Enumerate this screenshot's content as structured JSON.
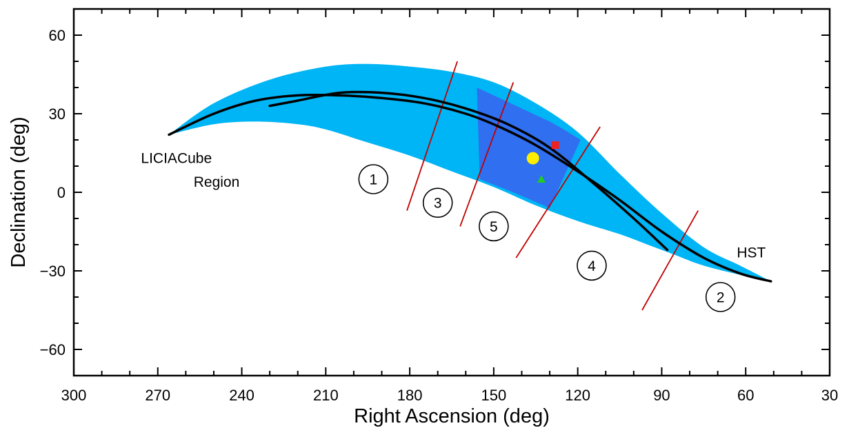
{
  "chart_data": {
    "type": "scatter",
    "xlabel": "Right Ascension (deg)",
    "ylabel": "Declination (deg)",
    "xlim": [
      300,
      30
    ],
    "ylim": [
      -70,
      70
    ],
    "x_ticks": [
      300,
      270,
      240,
      210,
      180,
      150,
      120,
      90,
      60,
      30
    ],
    "y_ticks": [
      60,
      30,
      0,
      -30,
      -60
    ],
    "x_tick_labels": [
      "300",
      "270",
      "240",
      "210",
      "180",
      "150",
      "120",
      "90",
      "60",
      "30"
    ],
    "y_tick_labels": [
      "60",
      "30",
      "0",
      "−30",
      "−60"
    ],
    "grid": false,
    "colors": {
      "band": "#00b5f5",
      "band_highlight": "#2f6ff0",
      "track": "#000000",
      "boundary": "#c00000",
      "circle_marker": "#ffee00",
      "square_marker": "#ee2222",
      "triangle_marker": "#22cc22"
    },
    "band_upper": [
      [
        266,
        22
      ],
      [
        250,
        34
      ],
      [
        230,
        43
      ],
      [
        210,
        48
      ],
      [
        195,
        49
      ],
      [
        180,
        48
      ],
      [
        165,
        46
      ],
      [
        150,
        42
      ],
      [
        135,
        34
      ],
      [
        120,
        23
      ],
      [
        105,
        7
      ],
      [
        90,
        -8
      ],
      [
        75,
        -21
      ],
      [
        62,
        -28
      ],
      [
        51,
        -34
      ]
    ],
    "band_lower": [
      [
        266,
        22
      ],
      [
        250,
        26
      ],
      [
        235,
        27
      ],
      [
        220,
        26
      ],
      [
        210,
        24
      ],
      [
        195,
        19
      ],
      [
        180,
        14
      ],
      [
        165,
        8
      ],
      [
        150,
        2
      ],
      [
        135,
        -5
      ],
      [
        120,
        -11
      ],
      [
        105,
        -16
      ],
      [
        95,
        -20
      ],
      [
        85,
        -24
      ],
      [
        75,
        -28
      ],
      [
        60,
        -32
      ],
      [
        51,
        -34
      ]
    ],
    "highlight_region": [
      [
        156,
        40
      ],
      [
        130,
        27
      ],
      [
        125,
        24
      ],
      [
        119,
        20
      ],
      [
        130,
        -6
      ],
      [
        143,
        0
      ],
      [
        155,
        5
      ]
    ],
    "tracks": [
      {
        "points": [
          [
            266,
            22
          ],
          [
            250,
            30
          ],
          [
            235,
            35
          ],
          [
            220,
            37
          ],
          [
            205,
            37
          ],
          [
            190,
            36
          ],
          [
            175,
            34
          ],
          [
            160,
            30
          ],
          [
            148,
            25
          ],
          [
            135,
            18
          ],
          [
            120,
            8
          ],
          [
            105,
            -3
          ],
          [
            90,
            -15
          ],
          [
            75,
            -25
          ],
          [
            62,
            -31
          ],
          [
            51,
            -34
          ]
        ]
      },
      {
        "points": [
          [
            230,
            33
          ],
          [
            220,
            35
          ],
          [
            205,
            38
          ],
          [
            190,
            38
          ],
          [
            175,
            36
          ],
          [
            160,
            32
          ],
          [
            145,
            26
          ],
          [
            130,
            17
          ],
          [
            115,
            4
          ],
          [
            100,
            -10
          ],
          [
            88,
            -22
          ]
        ]
      }
    ],
    "region_boundaries": [
      [
        [
          181,
          -7
        ],
        [
          163,
          50
        ]
      ],
      [
        [
          162,
          -13
        ],
        [
          143,
          42
        ]
      ],
      [
        [
          142,
          -25
        ],
        [
          112,
          25
        ]
      ],
      [
        [
          97,
          -45
        ],
        [
          77,
          -7
        ]
      ]
    ],
    "markers": [
      {
        "shape": "circle",
        "x": 136,
        "y": 13
      },
      {
        "shape": "square",
        "x": 128,
        "y": 18
      },
      {
        "shape": "triangle",
        "x": 133,
        "y": 5
      }
    ],
    "annotations": {
      "start_label": {
        "text": "LICIACube",
        "x": 276,
        "y": 13
      },
      "end_label": {
        "text": "HST",
        "x": 58,
        "y": -23
      },
      "region_label": {
        "text": "Region",
        "x": 249,
        "y": 4
      }
    },
    "region_numbers": [
      {
        "text": "1",
        "x": 193,
        "y": 5
      },
      {
        "text": "3",
        "x": 170,
        "y": -4
      },
      {
        "text": "5",
        "x": 150,
        "y": -13
      },
      {
        "text": "4",
        "x": 115,
        "y": -28
      },
      {
        "text": "2",
        "x": 69,
        "y": -40
      }
    ]
  }
}
